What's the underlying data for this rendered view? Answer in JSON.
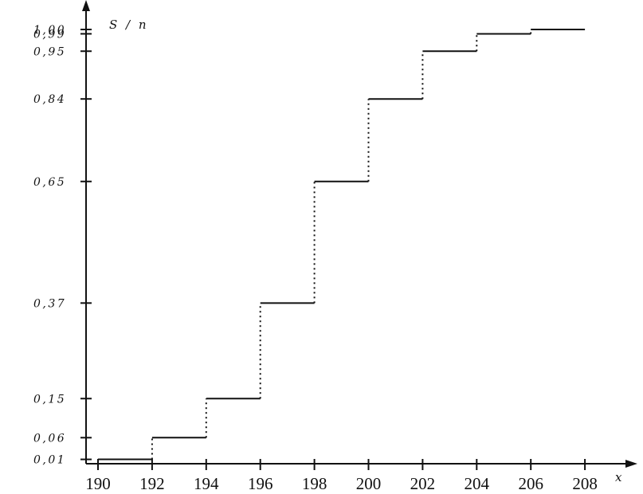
{
  "chart_data": {
    "type": "line",
    "subtype": "step",
    "description_visible": false,
    "ylabel": "S / n",
    "xlabel": "x",
    "x_ticks": [
      190,
      192,
      194,
      196,
      198,
      200,
      202,
      204,
      206,
      208
    ],
    "x_tick_labels": [
      "190",
      "192",
      "194",
      "196",
      "198",
      "200",
      "202",
      "204",
      "206",
      "208"
    ],
    "y_ticks": [
      0.01,
      0.06,
      0.15,
      0.37,
      0.65,
      0.84,
      0.95,
      0.99,
      1.0
    ],
    "y_tick_labels": [
      "0,01",
      "0,06",
      "0,15",
      "0,37",
      "0,65",
      "0,84",
      "0,95",
      "0,99",
      "1,00"
    ],
    "series": [
      {
        "x": [
          190,
          192,
          194,
          196,
          198,
          200,
          202,
          204,
          206,
          208
        ],
        "y": [
          0.01,
          0.06,
          0.15,
          0.37,
          0.65,
          0.84,
          0.95,
          0.99,
          1.0,
          1.0
        ]
      }
    ],
    "vertical_jumps_style": "dotted",
    "grid": false,
    "legend": "none"
  }
}
